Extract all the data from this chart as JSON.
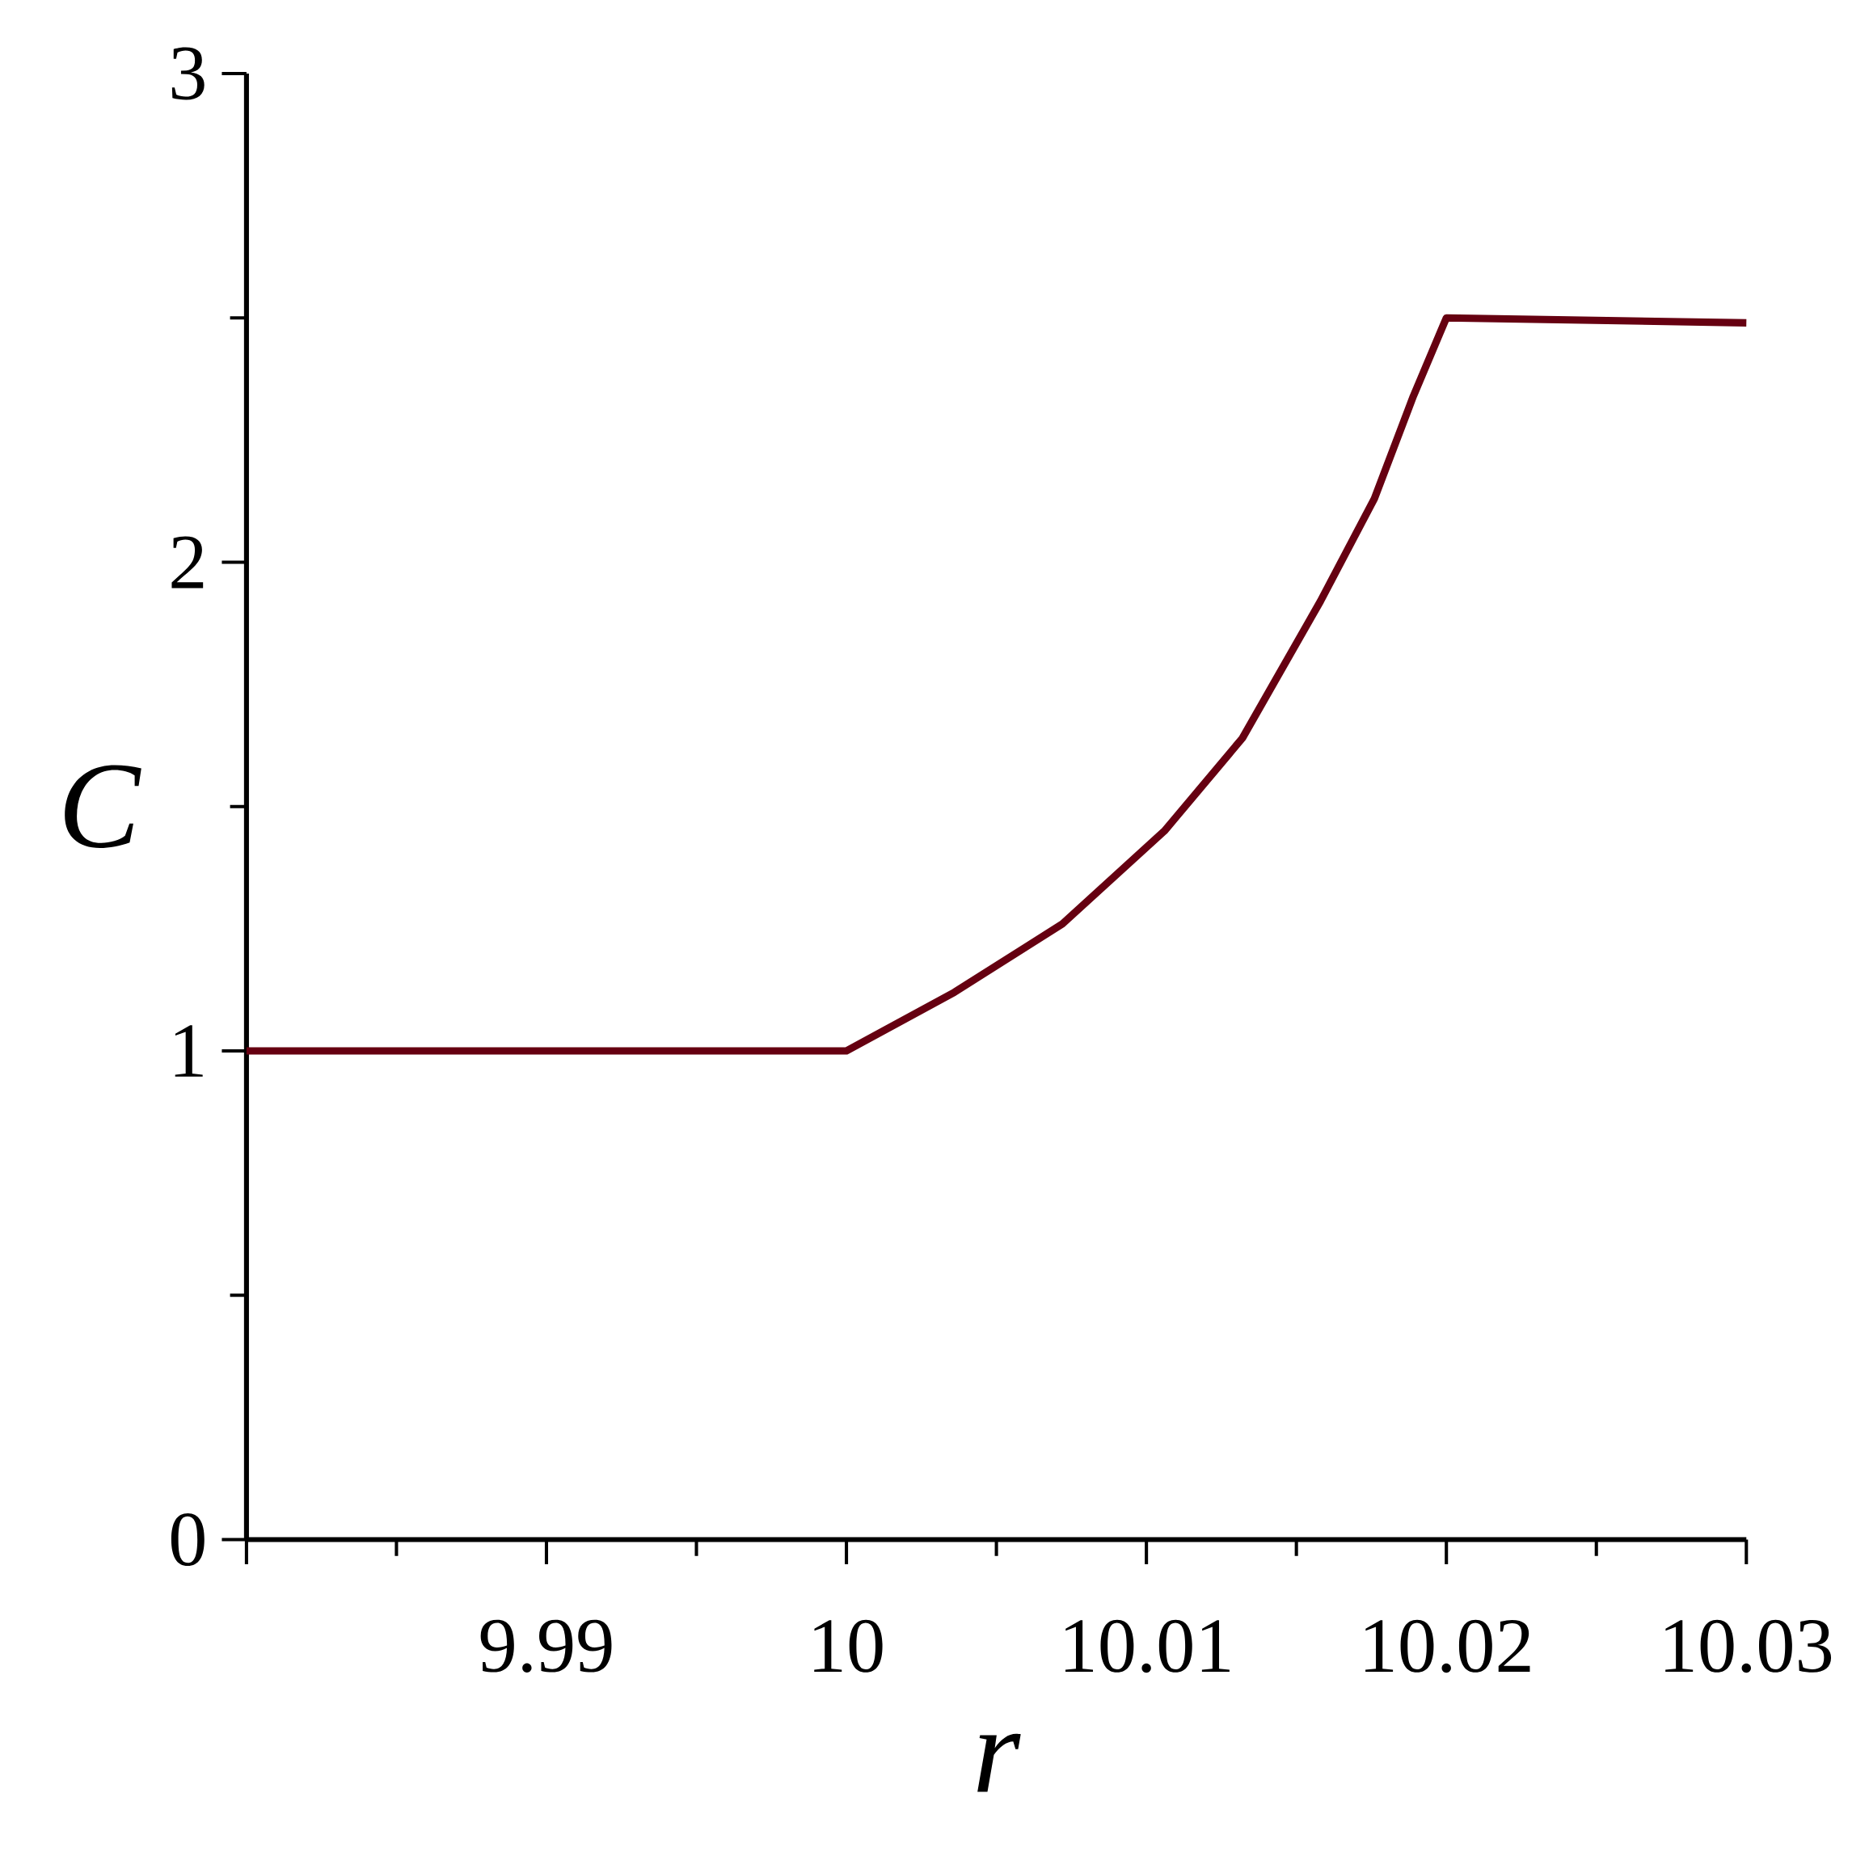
{
  "chart_data": {
    "type": "line",
    "xlabel": "r",
    "ylabel": "C",
    "x": [
      9.98,
      10,
      10.0036,
      10.0072,
      10.0106,
      10.0132,
      10.0158,
      10.0176,
      10.0189,
      10.02,
      10.03
    ],
    "series": [
      {
        "color": "#660011",
        "values": [
          1,
          1,
          1.12,
          1.26,
          1.45,
          1.64,
          1.92,
          2.13,
          2.34,
          2.5,
          2.49
        ]
      }
    ],
    "xlim": [
      9.98,
      10.03
    ],
    "xticks": [
      {
        "value": 9.98,
        "label": null
      },
      9.99,
      10,
      10.01,
      10.02,
      10.03
    ],
    "ylim": [
      0,
      3
    ],
    "yticks": [
      0,
      1,
      2,
      3
    ],
    "grid": false,
    "marker": "none",
    "line_style": "solid"
  }
}
